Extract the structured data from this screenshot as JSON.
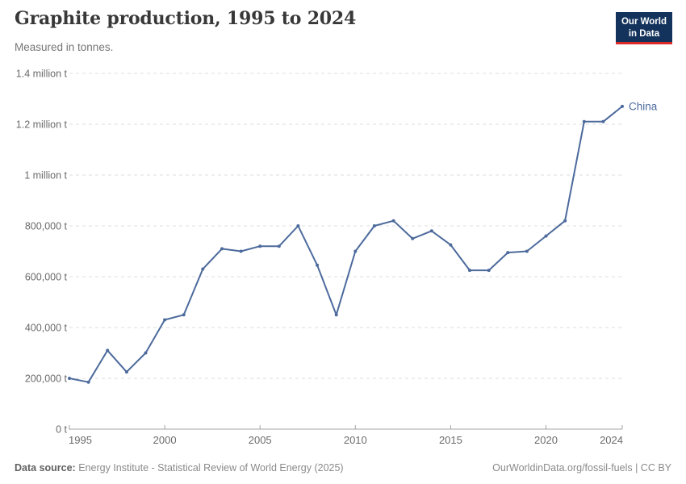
{
  "header": {
    "title": "Graphite production, 1995 to 2024",
    "subtitle": "Measured in tonnes.",
    "logo": {
      "line1": "Our World",
      "line2": "in Data",
      "bg_color": "#14335c",
      "accent_color": "#dc2a27"
    }
  },
  "chart_data": {
    "type": "line",
    "title": "Graphite production, 1995 to 2024",
    "unit": "tonnes",
    "xlim": [
      1995,
      2024
    ],
    "ylim": [
      0,
      1400000
    ],
    "grid": "horizontal-dashed",
    "legend_position": "end-of-line-label",
    "x_ticks": [
      1995,
      2000,
      2005,
      2010,
      2015,
      2020,
      2024
    ],
    "y_ticks": [
      {
        "value": 0,
        "label": "0 t"
      },
      {
        "value": 200000,
        "label": "200,000 t"
      },
      {
        "value": 400000,
        "label": "400,000 t"
      },
      {
        "value": 600000,
        "label": "600,000 t"
      },
      {
        "value": 800000,
        "label": "800,000 t"
      },
      {
        "value": 1000000,
        "label": "1 million t"
      },
      {
        "value": 1200000,
        "label": "1.2 million t"
      },
      {
        "value": 1400000,
        "label": "1.4 million t"
      }
    ],
    "x": [
      1995,
      1996,
      1997,
      1998,
      1999,
      2000,
      2001,
      2002,
      2003,
      2004,
      2005,
      2006,
      2007,
      2008,
      2009,
      2010,
      2011,
      2012,
      2013,
      2014,
      2015,
      2016,
      2017,
      2018,
      2019,
      2020,
      2021,
      2022,
      2023,
      2024
    ],
    "series": [
      {
        "name": "China",
        "color": "#4c6a9c",
        "values": [
          200000,
          185000,
          310000,
          225000,
          300000,
          430000,
          450000,
          630000,
          710000,
          700000,
          720000,
          720000,
          800000,
          645000,
          450000,
          700000,
          800000,
          820000,
          750000,
          780000,
          725000,
          625000,
          625000,
          695000,
          700000,
          760000,
          820000,
          1210000,
          1210000,
          1270000
        ]
      }
    ],
    "axis_color": "#a3a3a3",
    "grid_color": "#dddddd",
    "tick_label_color": "#6b6b6b"
  },
  "footer": {
    "source_label": "Data source:",
    "source_text": " Energy Institute - Statistical Review of World Energy (2025)",
    "credit": "OurWorldinData.org/fossil-fuels | CC BY"
  }
}
